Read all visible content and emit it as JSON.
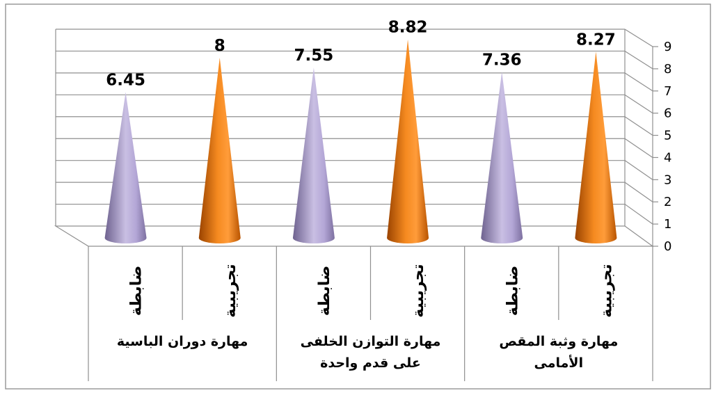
{
  "chart_data": {
    "type": "bar",
    "bar_shape": "cone",
    "three_d": true,
    "title": "",
    "ylim": [
      0,
      9
    ],
    "y_ticks": [
      "0",
      "1",
      "2",
      "3",
      "4",
      "5",
      "6",
      "7",
      "8",
      "9"
    ],
    "y_axis_side": "right",
    "grid": true,
    "groups": [
      {
        "name_lines": [
          "مهارة وثبة المقص",
          "الأمامى"
        ],
        "bars": [
          {
            "category": "تجريبية",
            "value": 8.27,
            "label": "8.27",
            "color": "#f07a12"
          },
          {
            "category": "ضابطة",
            "value": 7.36,
            "label": "7.36",
            "color": "#a99bc9"
          }
        ]
      },
      {
        "name_lines": [
          "مهارة التوازن الخلفى",
          "على قدم واحدة"
        ],
        "bars": [
          {
            "category": "تجريبية",
            "value": 8.82,
            "label": "8.82",
            "color": "#f07a12"
          },
          {
            "category": "ضابطة",
            "value": 7.55,
            "label": "7.55",
            "color": "#a99bc9"
          }
        ]
      },
      {
        "name_lines": [
          "مهارة دوران الباسية"
        ],
        "bars": [
          {
            "category": "تجريبية",
            "value": 8,
            "label": "8",
            "color": "#f07a12"
          },
          {
            "category": "ضابطة",
            "value": 6.45,
            "label": "6.45",
            "color": "#a99bc9"
          }
        ]
      }
    ]
  }
}
